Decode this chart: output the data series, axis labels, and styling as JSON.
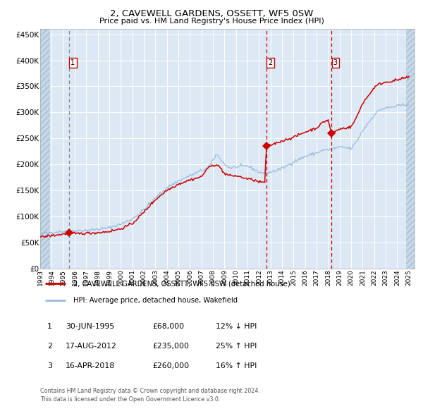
{
  "title": "2, CAVEWELL GARDENS, OSSETT, WF5 0SW",
  "subtitle": "Price paid vs. HM Land Registry's House Price Index (HPI)",
  "bg_color": "#dce9f5",
  "red_color": "#cc0000",
  "blue_color": "#99bbdd",
  "ylim": [
    0,
    460000
  ],
  "ytick_values": [
    0,
    50000,
    100000,
    150000,
    200000,
    250000,
    300000,
    350000,
    400000,
    450000
  ],
  "ytick_labels": [
    "£0",
    "£50K",
    "£100K",
    "£150K",
    "£200K",
    "£250K",
    "£300K",
    "£350K",
    "£400K",
    "£450K"
  ],
  "xlim": [
    1993.0,
    2025.5
  ],
  "xtick_years": [
    1993,
    1994,
    1995,
    1996,
    1997,
    1998,
    1999,
    2000,
    2001,
    2002,
    2003,
    2004,
    2005,
    2006,
    2007,
    2008,
    2009,
    2010,
    2011,
    2012,
    2013,
    2014,
    2015,
    2016,
    2017,
    2018,
    2019,
    2020,
    2021,
    2022,
    2023,
    2024,
    2025
  ],
  "legend_red": "2, CAVEWELL GARDENS, OSSETT, WF5 0SW (detached house)",
  "legend_blue": "HPI: Average price, detached house, Wakefield",
  "sales": [
    {
      "num": 1,
      "x": 1995.5,
      "price": 68000,
      "date": "30-JUN-1995",
      "price_str": "£68,000",
      "pct_str": "12% ↓ HPI"
    },
    {
      "num": 2,
      "x": 2012.63,
      "price": 235000,
      "date": "17-AUG-2012",
      "price_str": "£235,000",
      "pct_str": "25% ↑ HPI"
    },
    {
      "num": 3,
      "x": 2018.29,
      "price": 260000,
      "date": "16-APR-2018",
      "price_str": "£260,000",
      "pct_str": "16% ↑ HPI"
    }
  ],
  "footer1": "Contains HM Land Registry data © Crown copyright and database right 2024.",
  "footer2": "This data is licensed under the Open Government Licence v3.0.",
  "hpi_anchors_x": [
    1993.0,
    1994.0,
    1995.0,
    1996.0,
    1997.0,
    1998.0,
    1999.0,
    2000.0,
    2001.0,
    2002.0,
    2003.0,
    2004.0,
    2005.0,
    2006.0,
    2007.0,
    2007.7,
    2008.3,
    2009.0,
    2009.5,
    2010.0,
    2011.0,
    2012.0,
    2012.5,
    2013.0,
    2014.0,
    2015.0,
    2016.0,
    2017.0,
    2017.5,
    2018.0,
    2019.0,
    2019.5,
    2020.0,
    2020.5,
    2021.0,
    2021.5,
    2022.0,
    2022.5,
    2023.0,
    2023.5,
    2024.0,
    2024.8
  ],
  "hpi_anchors_y": [
    66000,
    69000,
    71000,
    72500,
    73000,
    75000,
    78000,
    85000,
    95000,
    113000,
    135000,
    155000,
    168000,
    178000,
    188000,
    195000,
    220000,
    200000,
    193000,
    195000,
    197000,
    185000,
    183000,
    185000,
    192000,
    205000,
    215000,
    222000,
    227000,
    228000,
    233000,
    232000,
    230000,
    245000,
    265000,
    280000,
    295000,
    305000,
    308000,
    310000,
    312000,
    315000
  ],
  "red_anchors_x": [
    1993.0,
    1994.0,
    1994.8,
    1995.5,
    1996.0,
    1997.0,
    1998.0,
    1999.0,
    2000.0,
    2001.0,
    2002.0,
    2003.0,
    2004.0,
    2005.0,
    2006.0,
    2007.0,
    2007.5,
    2008.0,
    2008.3,
    2008.7,
    2009.0,
    2009.5,
    2010.0,
    2010.5,
    2011.0,
    2011.5,
    2012.0,
    2012.5,
    2012.63,
    2013.0,
    2013.5,
    2014.0,
    2015.0,
    2016.0,
    2017.0,
    2017.3,
    2017.7,
    2018.0,
    2018.29,
    2018.5,
    2019.0,
    2019.5,
    2020.0,
    2020.5,
    2021.0,
    2021.5,
    2022.0,
    2022.5,
    2023.0,
    2023.5,
    2024.0,
    2024.5,
    2024.8
  ],
  "red_anchors_y": [
    60000,
    63000,
    65000,
    68000,
    66500,
    67500,
    68500,
    71000,
    76000,
    86000,
    108000,
    132000,
    150000,
    162000,
    170000,
    176000,
    192000,
    198000,
    200000,
    192000,
    182000,
    178000,
    178000,
    175000,
    172000,
    170000,
    166000,
    165000,
    235000,
    237000,
    241000,
    245000,
    252000,
    262000,
    270000,
    276000,
    283000,
    285000,
    260000,
    262000,
    268000,
    270000,
    272000,
    292000,
    318000,
    332000,
    348000,
    355000,
    358000,
    360000,
    362000,
    365000,
    367000
  ]
}
